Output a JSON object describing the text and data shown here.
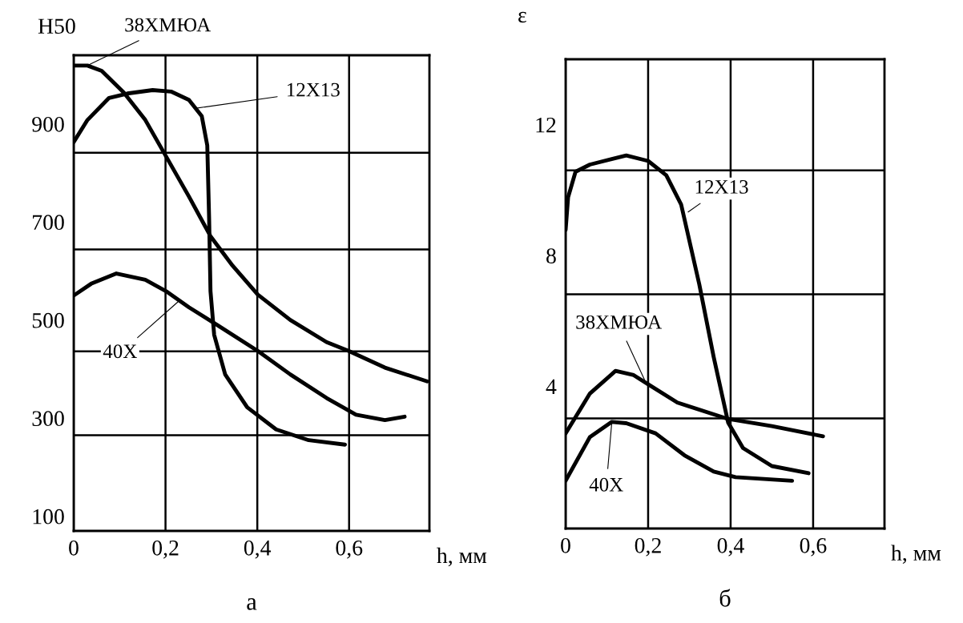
{
  "chart_data": [
    {
      "type": "line",
      "ylabel": "H50",
      "xlabel": "h, мм",
      "xlim": [
        0,
        0.775
      ],
      "ylim": [
        70,
        1040
      ],
      "xticks": [
        0,
        {
          "value": 0.2,
          "label": "0,2"
        },
        {
          "value": 0.4,
          "label": "0,4"
        },
        {
          "value": 0.6,
          "label": "0,6"
        }
      ],
      "yticks": [
        100,
        300,
        500,
        700,
        900
      ],
      "grid": "x",
      "line_style": "solid",
      "marker": "none",
      "ref_lines": [
        {
          "axis": "y",
          "value": 841,
          "color": "#000000"
        },
        {
          "axis": "y",
          "value": 644,
          "color": "#000000"
        },
        {
          "axis": "y",
          "value": 436,
          "color": "#000000"
        },
        {
          "axis": "y",
          "value": 265,
          "color": "#000000"
        }
      ],
      "series": [
        {
          "color": "#000000",
          "x": [
            0.0,
            0.03,
            0.061,
            0.109,
            0.156,
            0.201,
            0.251,
            0.298,
            0.346,
            0.401,
            0.472,
            0.551,
            0.599,
            0.678,
            0.77
          ],
          "values": [
            1019,
            1019,
            1008,
            964,
            908,
            834,
            752,
            671,
            611,
            552,
            500,
            455,
            437,
            403,
            375
          ]
        },
        {
          "color": "#000000",
          "x": [
            0.0,
            0.03,
            0.077,
            0.117,
            0.172,
            0.212,
            0.251,
            0.279,
            0.291,
            0.295,
            0.298,
            0.306,
            0.33,
            0.378,
            0.441,
            0.512,
            0.591
          ],
          "values": [
            863,
            908,
            953,
            962,
            969,
            966,
            949,
            916,
            856,
            708,
            559,
            470,
            389,
            322,
            277,
            255,
            246
          ]
        },
        {
          "color": "#000000",
          "x": [
            0.0,
            0.038,
            0.093,
            0.156,
            0.201,
            0.251,
            0.314,
            0.401,
            0.472,
            0.551,
            0.615,
            0.678,
            0.721
          ],
          "values": [
            550,
            574,
            595,
            582,
            559,
            526,
            489,
            437,
            389,
            341,
            307,
            296,
            303
          ]
        }
      ],
      "annotations": [
        {
          "text": "38ХМЮА",
          "x": 0.03,
          "y": 1019
        },
        {
          "text": "12Х13",
          "x": 0.267,
          "y": 932
        },
        {
          "text": "40Х",
          "x": 0.227,
          "y": 537
        },
        "а"
      ]
    },
    {
      "type": "line",
      "ylabel": "ε",
      "xlabel": "h, мм",
      "xlim": [
        0,
        0.773
      ],
      "ylim": [
        -0.35,
        14
      ],
      "xticks": [
        0,
        {
          "value": 0.2,
          "label": "0,2"
        },
        {
          "value": 0.4,
          "label": "0,4"
        },
        {
          "value": 0.6,
          "label": "0,6"
        }
      ],
      "yticks": [
        4,
        8,
        12
      ],
      "grid": "x",
      "line_style": "solid",
      "marker": "none",
      "ref_lines": [
        {
          "axis": "y",
          "value": 10.6,
          "color": "#000000"
        },
        {
          "axis": "y",
          "value": 6.81,
          "color": "#000000"
        },
        {
          "axis": "y",
          "value": 3.02,
          "color": "#000000"
        }
      ],
      "series": [
        {
          "color": "#000000",
          "x": [
            0.0,
            0.006,
            0.024,
            0.059,
            0.147,
            0.2,
            0.244,
            0.28,
            0.324,
            0.359,
            0.394,
            0.43,
            0.5,
            0.589
          ],
          "values": [
            8.78,
            9.78,
            10.56,
            10.78,
            11.06,
            10.89,
            10.45,
            9.56,
            7.12,
            4.89,
            2.89,
            2.11,
            1.56,
            1.34
          ]
        },
        {
          "color": "#000000",
          "x": [
            0.0,
            0.059,
            0.121,
            0.165,
            0.2,
            0.271,
            0.394,
            0.5,
            0.624
          ],
          "values": [
            2.56,
            3.78,
            4.47,
            4.34,
            4.06,
            3.5,
            3.0,
            2.78,
            2.47
          ]
        },
        {
          "color": "#000000",
          "x": [
            0.0,
            0.059,
            0.112,
            0.147,
            0.218,
            0.288,
            0.359,
            0.412,
            0.549
          ],
          "values": [
            1.11,
            2.45,
            2.91,
            2.87,
            2.56,
            1.89,
            1.39,
            1.22,
            1.11
          ]
        }
      ],
      "annotations": [
        {
          "text": "12Х13",
          "x": 0.297,
          "y": 9.33
        },
        {
          "text": "38ХМЮА",
          "x": 0.196,
          "y": 4.07
        },
        {
          "text": "40Х",
          "x": 0.112,
          "y": 2.91
        },
        "б"
      ]
    }
  ]
}
